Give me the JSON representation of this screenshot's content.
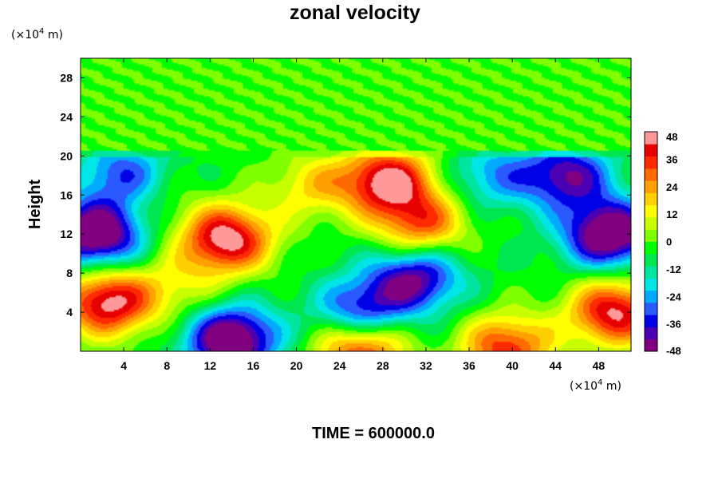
{
  "chart_data": {
    "type": "heatmap",
    "title": "zonal velocity",
    "ylabel": "Height",
    "x_unit_prefix": "(×10",
    "x_unit_exp": "4",
    "x_unit_suffix": " m)",
    "y_unit_prefix": "(×10",
    "y_unit_exp": "4",
    "y_unit_suffix": " m)",
    "footer": "TIME = 600000.0",
    "xlim": [
      0,
      51
    ],
    "ylim": [
      0,
      30
    ],
    "xticks": [
      4,
      8,
      12,
      16,
      20,
      24,
      28,
      32,
      36,
      40,
      44,
      48
    ],
    "yticks": [
      4,
      8,
      12,
      16,
      20,
      24,
      28
    ],
    "colorbar": {
      "range": [
        -48,
        48
      ],
      "ticks": [
        48,
        36,
        24,
        12,
        0,
        -12,
        -24,
        -36,
        -48
      ],
      "colors": [
        "#800080",
        "#4b00b4",
        "#0000e6",
        "#2a5aff",
        "#00aaff",
        "#00e6e6",
        "#00e6a0",
        "#00e650",
        "#00ff00",
        "#7fff00",
        "#c8ff00",
        "#ffff00",
        "#ffd000",
        "#ffa000",
        "#ff6a00",
        "#ff2a00",
        "#e60000",
        "#ff9898"
      ]
    },
    "features": [
      {
        "x": 13.5,
        "y": 11.5,
        "value": 52,
        "description": "strong positive core"
      },
      {
        "x": 28.5,
        "y": 17.5,
        "value": 50,
        "description": "positive core upper"
      },
      {
        "x": 2.5,
        "y": 5.0,
        "value": 50,
        "description": "positive core left"
      },
      {
        "x": 49.5,
        "y": 4.0,
        "value": 48,
        "description": "positive core right"
      },
      {
        "x": 1.5,
        "y": 12.0,
        "value": -52,
        "description": "negative core left"
      },
      {
        "x": 49.0,
        "y": 12.0,
        "value": -52,
        "description": "negative core right"
      },
      {
        "x": 14.0,
        "y": 1.2,
        "value": -52,
        "description": "negative core bottom"
      },
      {
        "x": 31.0,
        "y": 7.5,
        "value": -40,
        "description": "negative spot"
      },
      {
        "x": 26.0,
        "y": 4.0,
        "value": -36,
        "description": "negative spot"
      },
      {
        "x": 45.0,
        "y": 18.0,
        "value": -38,
        "description": "negative upper right"
      },
      {
        "x": 4.0,
        "y": 18.0,
        "value": -30,
        "description": "negative upper left"
      },
      {
        "x": 38.0,
        "y": 18.0,
        "value": -20,
        "description": "negative upper middle"
      },
      {
        "x": 31.5,
        "y": 13.0,
        "value": 36,
        "description": "positive spot"
      },
      {
        "x": 26.0,
        "y": 0.3,
        "value": 44,
        "description": "positive bottom"
      },
      {
        "x": 39.5,
        "y": 0.3,
        "value": 40,
        "description": "positive bottom right"
      },
      {
        "x": 21.5,
        "y": 17.0,
        "value": 20,
        "description": "warm band"
      },
      {
        "x": 9.0,
        "y": 6.5,
        "value": 14,
        "description": "warm band lower left"
      },
      {
        "x": 6.0,
        "y": 16.0,
        "value": 8,
        "description": "yellow-green left"
      }
    ],
    "upper_layer": {
      "y_from": 20.5,
      "value": 0,
      "description": "near-zero flow above height 20"
    }
  }
}
